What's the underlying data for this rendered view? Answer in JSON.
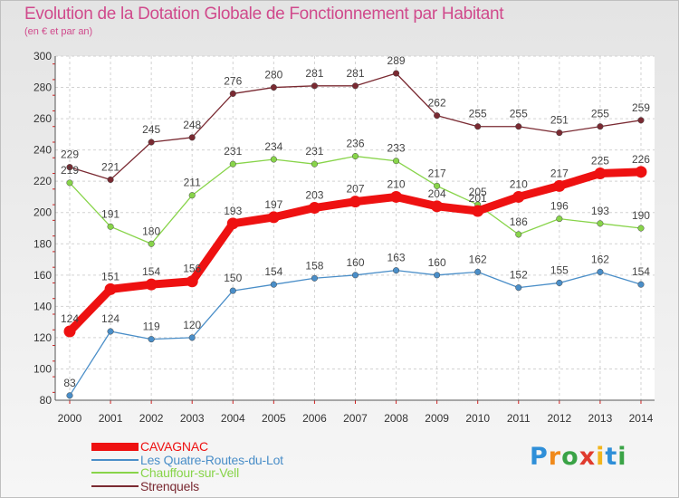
{
  "header": {
    "title": "Evolution de la Dotation Globale de Fonctionnement par Habitant",
    "subtitle": "(en € et par an)"
  },
  "logo": {
    "text": "Proxiti"
  },
  "chart_data": {
    "type": "line",
    "title": "Evolution de la Dotation Globale de Fonctionnement par Habitant",
    "subtitle": "(en € et par an)",
    "categories": [
      "2000",
      "2001",
      "2002",
      "2003",
      "2004",
      "2005",
      "2006",
      "2007",
      "2008",
      "2009",
      "2010",
      "2011",
      "2012",
      "2013",
      "2014"
    ],
    "ylim": [
      80,
      300
    ],
    "yticks": [
      80,
      100,
      120,
      140,
      160,
      180,
      200,
      220,
      240,
      260,
      280,
      300
    ],
    "grid": true,
    "legend_position": "bottom-left",
    "series": [
      {
        "name": "Strenquels",
        "color": "#7a2a32",
        "values": [
          229,
          221,
          245,
          248,
          276,
          280,
          281,
          281,
          289,
          262,
          255,
          255,
          251,
          255,
          259
        ]
      },
      {
        "name": "Chauffour-sur-Vell",
        "color": "#88d44a",
        "values": [
          219,
          191,
          180,
          211,
          231,
          234,
          231,
          236,
          233,
          217,
          205,
          186,
          196,
          193,
          190
        ]
      },
      {
        "name": "Les Quatre-Routes-du-Lot",
        "color": "#4a8ec8",
        "values": [
          83,
          124,
          119,
          120,
          150,
          154,
          158,
          160,
          163,
          160,
          162,
          152,
          155,
          162,
          154
        ]
      },
      {
        "name": "CAVAGNAC",
        "color": "#ee1111",
        "values": [
          124,
          151,
          154,
          156,
          193,
          197,
          203,
          207,
          210,
          204,
          201,
          210,
          217,
          225,
          226
        ],
        "bold": true
      }
    ],
    "legend": [
      "CAVAGNAC",
      "Les Quatre-Routes-du-Lot",
      "Chauffour-sur-Vell",
      "Strenquels"
    ]
  }
}
